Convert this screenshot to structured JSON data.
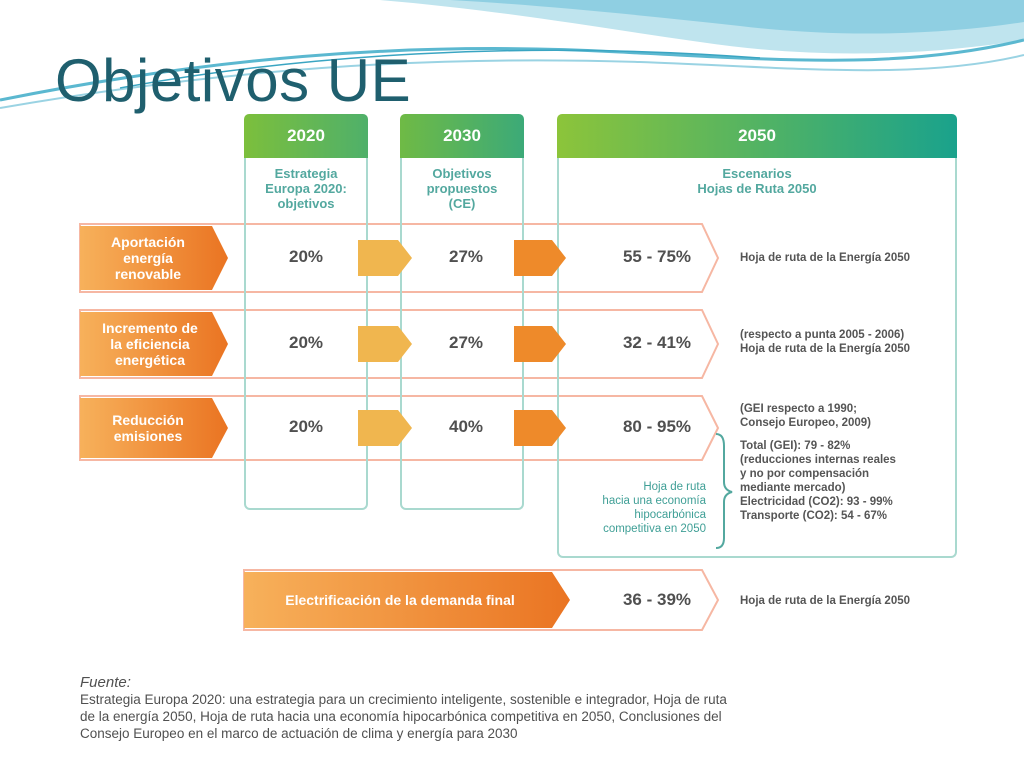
{
  "title": "Objetivos UE",
  "columns": [
    {
      "year": "2020",
      "desc": [
        "Estrategia",
        "Europa 2020:",
        "objetivos"
      ]
    },
    {
      "year": "2030",
      "desc": [
        "Objetivos",
        "propuestos",
        "(CE)"
      ]
    },
    {
      "year": "2050",
      "desc": [
        "Escenarios",
        "Hojas de Ruta 2050"
      ]
    }
  ],
  "rows": [
    {
      "label": [
        "Aportación",
        "energía",
        "renovable"
      ],
      "v2020": "20%",
      "v2030": "27%",
      "v2050": "55 - 75%",
      "note": [
        "Hoja de ruta de la Energía 2050"
      ]
    },
    {
      "label": [
        "Incremento de",
        "la eficiencia",
        "energética"
      ],
      "v2020": "20%",
      "v2030": "27%",
      "v2050": "32 - 41%",
      "note": [
        "(respecto a punta 2005 - 2006)",
        "Hoja de ruta de la Energía 2050"
      ]
    },
    {
      "label": [
        "Reducción",
        "emisiones"
      ],
      "v2020": "20%",
      "v2030": "40%",
      "v2050": "80 - 95%",
      "note": [
        "(GEI respecto a 1990;",
        "Consejo Europeo, 2009)"
      ]
    }
  ],
  "emissions_detail": [
    "Total (GEI): 79 - 82%",
    "(reducciones internas reales",
    "y no por compensación",
    "mediante mercado)",
    "Electricidad (CO2): 93 - 99%",
    "Transporte (CO2): 54 - 67%"
  ],
  "hoja_ruta_note": [
    "Hoja de ruta",
    "hacia una economía",
    "hipocarbónica",
    "competitiva en 2050"
  ],
  "electrification": {
    "label": "Electrificación de la demanda final",
    "value": "36 - 39%",
    "note": "Hoja de ruta de la Energía 2050"
  },
  "source": {
    "header": "Fuente:",
    "lines": [
      "Estrategia Europa 2020: una estrategia para un crecimiento inteligente, sostenible e integrador, Hoja de ruta",
      "de la energía 2050, Hoja de ruta hacia una economía hipocarbónica competitiva en 2050, Conclusiones del",
      "Consejo Europeo en el marco de actuación de clima y energía para 2030"
    ]
  },
  "colors": {
    "title": "#1f5f6e",
    "header_green_start": "#7cbf3c",
    "header_green_end": "#1aa28c",
    "orange_start": "#f7b15b",
    "orange_end": "#ea7422",
    "frame_teal": "#a9d9cf"
  }
}
